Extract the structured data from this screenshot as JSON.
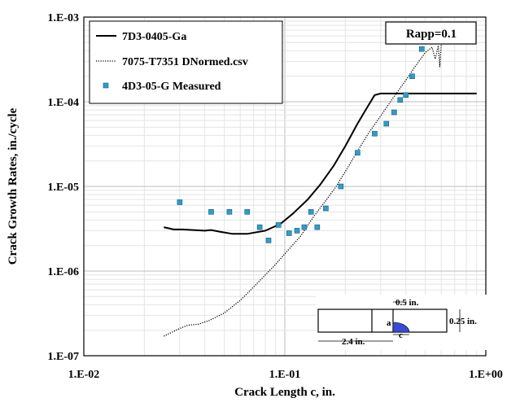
{
  "chart_data": {
    "type": "scatter",
    "title": "",
    "xlabel": "Crack Length c, in.",
    "ylabel": "Crack Growth Rates, in./cycle",
    "xscale": "log",
    "yscale": "log",
    "xlim": [
      0.01,
      1.0
    ],
    "ylim": [
      1e-07,
      0.001
    ],
    "grid": true,
    "legend_position": "top-left",
    "x_tick_labels": [
      "1.E-02",
      "1.E-01",
      "1.E+00"
    ],
    "y_tick_labels": [
      "1.E-07",
      "1.E-06",
      "1.E-05",
      "1.E-04",
      "1.E-03"
    ],
    "annotation": "Rapp=0.1",
    "series": [
      {
        "name": "7D3-0405-Ga",
        "style": "solid-line",
        "color": "#000000",
        "x": [
          0.025,
          0.028,
          0.031,
          0.035,
          0.04,
          0.043,
          0.048,
          0.055,
          0.065,
          0.08,
          0.095,
          0.11,
          0.13,
          0.15,
          0.175,
          0.2,
          0.23,
          0.26,
          0.28,
          0.3,
          0.35,
          0.5,
          0.7,
          0.9
        ],
        "y": [
          3.3e-06,
          3.1e-06,
          3.1e-06,
          3.05e-06,
          3e-06,
          3.05e-06,
          2.9e-06,
          2.75e-06,
          2.75e-06,
          3e-06,
          3.6e-06,
          4.8e-06,
          7e-06,
          1.05e-05,
          1.75e-05,
          3e-05,
          5.5e-05,
          9e-05,
          0.00012,
          0.000125,
          0.000125,
          0.000125,
          0.000125,
          0.000125
        ]
      },
      {
        "name": "7075-T7351 DNormed.csv",
        "style": "dotted-line",
        "color": "#000000",
        "x": [
          0.025,
          0.03,
          0.033,
          0.037,
          0.042,
          0.05,
          0.06,
          0.07,
          0.08,
          0.09,
          0.1,
          0.12,
          0.14,
          0.16,
          0.18,
          0.2,
          0.23,
          0.26,
          0.3,
          0.34,
          0.4,
          0.45,
          0.5,
          0.54,
          0.56,
          0.58,
          0.59,
          0.6
        ],
        "y": [
          1.7e-07,
          2.1e-07,
          2.3e-07,
          2.35e-07,
          2.6e-07,
          3.2e-07,
          4.5e-07,
          6.5e-07,
          9e-07,
          1.2e-06,
          1.6e-06,
          2.6e-06,
          4.5e-06,
          6.8e-06,
          1e-05,
          1.5e-05,
          2.6e-05,
          4.2e-05,
          6.8e-05,
          0.000105,
          0.00018,
          0.00027,
          0.00038,
          0.00044,
          0.00032,
          0.00046,
          0.00026,
          0.00048
        ]
      },
      {
        "name": "4D3-05-G Measured",
        "style": "markers",
        "color": "#2e9dc8",
        "x": [
          0.03,
          0.043,
          0.053,
          0.065,
          0.075,
          0.083,
          0.093,
          0.105,
          0.115,
          0.125,
          0.135,
          0.145,
          0.16,
          0.19,
          0.23,
          0.28,
          0.32,
          0.35,
          0.375,
          0.4,
          0.43,
          0.48
        ],
        "y": [
          6.5e-06,
          5e-06,
          5e-06,
          5e-06,
          3.3e-06,
          2.3e-06,
          3.5e-06,
          2.8e-06,
          3e-06,
          3.3e-06,
          5e-06,
          3.3e-06,
          5.5e-06,
          1e-05,
          2.5e-05,
          4.2e-05,
          5.5e-05,
          7.5e-05,
          0.000105,
          0.00012,
          0.0002,
          0.00042
        ]
      }
    ]
  },
  "inset": {
    "dim_top": "0.5 in.",
    "dim_right": "0.25 in.",
    "dim_bottom": "2.4 in.",
    "label_a": "a",
    "label_c": "c"
  }
}
